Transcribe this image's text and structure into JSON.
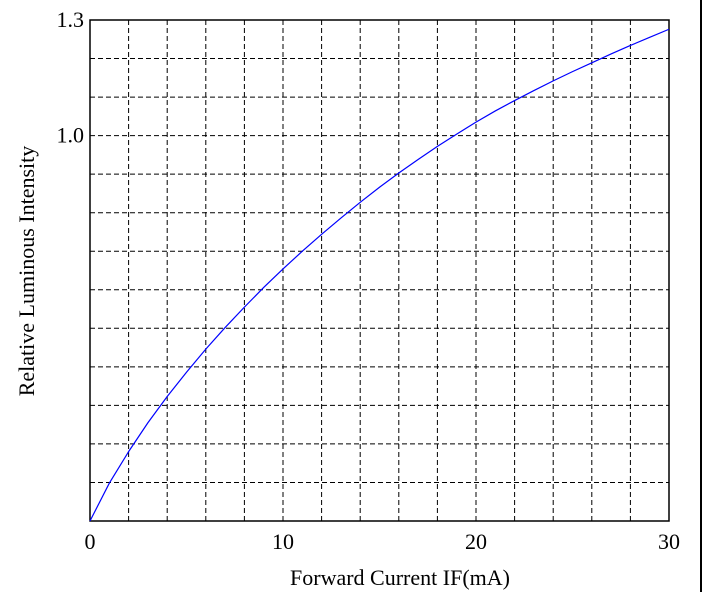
{
  "chart_data": {
    "type": "line",
    "title": "",
    "xlabel": "Forward Current IF(mA)",
    "ylabel": "Relative Luminous Intensity",
    "xlim": [
      0,
      30
    ],
    "ylim": [
      0,
      1.3
    ],
    "x_ticks": [
      0,
      10,
      20,
      30
    ],
    "x_tick_labels": [
      "0",
      "10",
      "20",
      "30"
    ],
    "y_ticks": [
      1.0,
      1.3
    ],
    "y_tick_labels": [
      "1.0",
      "1.3"
    ],
    "grid": true,
    "grid_style": "dashed",
    "x_grid_step": 2,
    "y_grid_step": 0.1,
    "series": [
      {
        "color": "#0000ff",
        "x": [
          0,
          1,
          2,
          3,
          4,
          5,
          6,
          7,
          8,
          9,
          10,
          11,
          12,
          13,
          14,
          15,
          16,
          17,
          18,
          19,
          20,
          21,
          22,
          23,
          24,
          25,
          26,
          27,
          28,
          29,
          30
        ],
        "y": [
          0.0,
          0.098,
          0.18,
          0.255,
          0.323,
          0.386,
          0.446,
          0.502,
          0.555,
          0.606,
          0.654,
          0.7,
          0.744,
          0.786,
          0.827,
          0.866,
          0.903,
          0.938,
          0.972,
          1.004,
          1.035,
          1.064,
          1.091,
          1.117,
          1.142,
          1.166,
          1.189,
          1.212,
          1.234,
          1.255,
          1.276
        ]
      }
    ]
  }
}
